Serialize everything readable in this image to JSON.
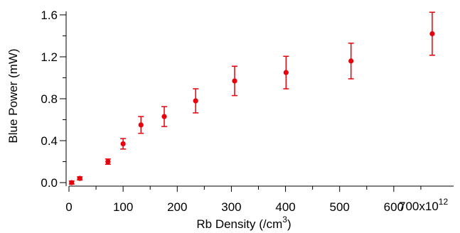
{
  "chart_data": {
    "type": "scatter",
    "xlabel": "Rb Density (/cm",
    "xlabel_sup": "3",
    "xlabel_end": ")",
    "ylabel": "Blue Power (mW)",
    "x_scale_label": "700x10",
    "x_scale_exp": "12",
    "xlim": [
      0,
      700
    ],
    "ylim": [
      -0.02,
      1.62
    ],
    "x_ticks": [
      0,
      100,
      200,
      300,
      400,
      500,
      600
    ],
    "x_tick_labels": [
      "0",
      "100",
      "200",
      "300",
      "400",
      "500",
      "600"
    ],
    "y_ticks": [
      0.0,
      0.4,
      0.8,
      1.2,
      1.6
    ],
    "y_tick_labels": [
      "0.0",
      "0.4",
      "0.8",
      "1.2",
      "1.6"
    ],
    "grid": false,
    "color": "#e8000b",
    "series": [
      {
        "x": [
          5,
          20,
          72,
          100,
          133,
          176,
          234,
          306,
          401,
          521,
          671
        ],
        "y": [
          0.0,
          0.04,
          0.2,
          0.37,
          0.55,
          0.63,
          0.78,
          0.97,
          1.05,
          1.16,
          1.42
        ],
        "err": [
          0.015,
          0.015,
          0.025,
          0.05,
          0.08,
          0.095,
          0.115,
          0.14,
          0.155,
          0.17,
          0.205
        ]
      }
    ]
  }
}
